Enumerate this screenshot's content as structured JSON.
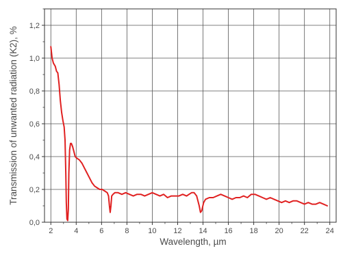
{
  "chart_data": {
    "type": "line",
    "xlabel": "Wavelength, µm",
    "ylabel": "Transmission of unwanted radiation (K2), %",
    "xlim": [
      1.5,
      24.5
    ],
    "ylim": [
      0,
      1.3
    ],
    "x_ticks": [
      "2",
      "4",
      "6",
      "8",
      "10",
      "12",
      "14",
      "16",
      "18",
      "20",
      "22",
      "24"
    ],
    "y_ticks": [
      "0,0",
      "0,2",
      "0,4",
      "0,6",
      "0,8",
      "1,0",
      "1,2"
    ],
    "grid": true,
    "series": [
      {
        "color": "#e02020",
        "points": [
          [
            2.0,
            1.07
          ],
          [
            2.1,
            1.0
          ],
          [
            2.2,
            0.97
          ],
          [
            2.35,
            0.95
          ],
          [
            2.45,
            0.92
          ],
          [
            2.55,
            0.91
          ],
          [
            2.65,
            0.84
          ],
          [
            2.75,
            0.74
          ],
          [
            2.85,
            0.67
          ],
          [
            2.95,
            0.62
          ],
          [
            3.05,
            0.58
          ],
          [
            3.12,
            0.5
          ],
          [
            3.18,
            0.3
          ],
          [
            3.22,
            0.12
          ],
          [
            3.27,
            0.02
          ],
          [
            3.33,
            0.01
          ],
          [
            3.38,
            0.08
          ],
          [
            3.42,
            0.3
          ],
          [
            3.48,
            0.44
          ],
          [
            3.55,
            0.48
          ],
          [
            3.62,
            0.48
          ],
          [
            3.72,
            0.46
          ],
          [
            3.82,
            0.43
          ],
          [
            3.92,
            0.4
          ],
          [
            4.05,
            0.39
          ],
          [
            4.25,
            0.38
          ],
          [
            4.45,
            0.36
          ],
          [
            4.65,
            0.33
          ],
          [
            4.85,
            0.3
          ],
          [
            5.05,
            0.27
          ],
          [
            5.25,
            0.24
          ],
          [
            5.45,
            0.22
          ],
          [
            5.65,
            0.21
          ],
          [
            5.85,
            0.2
          ],
          [
            6.05,
            0.2
          ],
          [
            6.25,
            0.19
          ],
          [
            6.45,
            0.18
          ],
          [
            6.55,
            0.16
          ],
          [
            6.62,
            0.1
          ],
          [
            6.68,
            0.06
          ],
          [
            6.74,
            0.1
          ],
          [
            6.8,
            0.16
          ],
          [
            6.9,
            0.17
          ],
          [
            7.05,
            0.18
          ],
          [
            7.3,
            0.18
          ],
          [
            7.6,
            0.17
          ],
          [
            7.9,
            0.18
          ],
          [
            8.2,
            0.17
          ],
          [
            8.5,
            0.16
          ],
          [
            8.8,
            0.17
          ],
          [
            9.1,
            0.17
          ],
          [
            9.4,
            0.16
          ],
          [
            9.7,
            0.17
          ],
          [
            10.0,
            0.18
          ],
          [
            10.3,
            0.17
          ],
          [
            10.6,
            0.16
          ],
          [
            10.9,
            0.17
          ],
          [
            11.2,
            0.15
          ],
          [
            11.5,
            0.16
          ],
          [
            11.8,
            0.16
          ],
          [
            12.1,
            0.16
          ],
          [
            12.4,
            0.17
          ],
          [
            12.7,
            0.16
          ],
          [
            12.9,
            0.17
          ],
          [
            13.1,
            0.18
          ],
          [
            13.3,
            0.18
          ],
          [
            13.5,
            0.16
          ],
          [
            13.7,
            0.1
          ],
          [
            13.8,
            0.06
          ],
          [
            13.9,
            0.07
          ],
          [
            14.05,
            0.12
          ],
          [
            14.2,
            0.14
          ],
          [
            14.5,
            0.15
          ],
          [
            14.8,
            0.15
          ],
          [
            15.1,
            0.16
          ],
          [
            15.4,
            0.17
          ],
          [
            15.7,
            0.16
          ],
          [
            16.0,
            0.15
          ],
          [
            16.3,
            0.14
          ],
          [
            16.6,
            0.15
          ],
          [
            16.9,
            0.15
          ],
          [
            17.2,
            0.16
          ],
          [
            17.5,
            0.15
          ],
          [
            17.8,
            0.17
          ],
          [
            18.1,
            0.17
          ],
          [
            18.4,
            0.16
          ],
          [
            18.7,
            0.15
          ],
          [
            19.0,
            0.14
          ],
          [
            19.3,
            0.15
          ],
          [
            19.6,
            0.14
          ],
          [
            19.9,
            0.13
          ],
          [
            20.2,
            0.12
          ],
          [
            20.5,
            0.13
          ],
          [
            20.8,
            0.12
          ],
          [
            21.1,
            0.13
          ],
          [
            21.4,
            0.13
          ],
          [
            21.7,
            0.12
          ],
          [
            22.0,
            0.11
          ],
          [
            22.3,
            0.12
          ],
          [
            22.6,
            0.11
          ],
          [
            22.9,
            0.11
          ],
          [
            23.2,
            0.12
          ],
          [
            23.5,
            0.11
          ],
          [
            23.8,
            0.1
          ]
        ]
      }
    ]
  }
}
